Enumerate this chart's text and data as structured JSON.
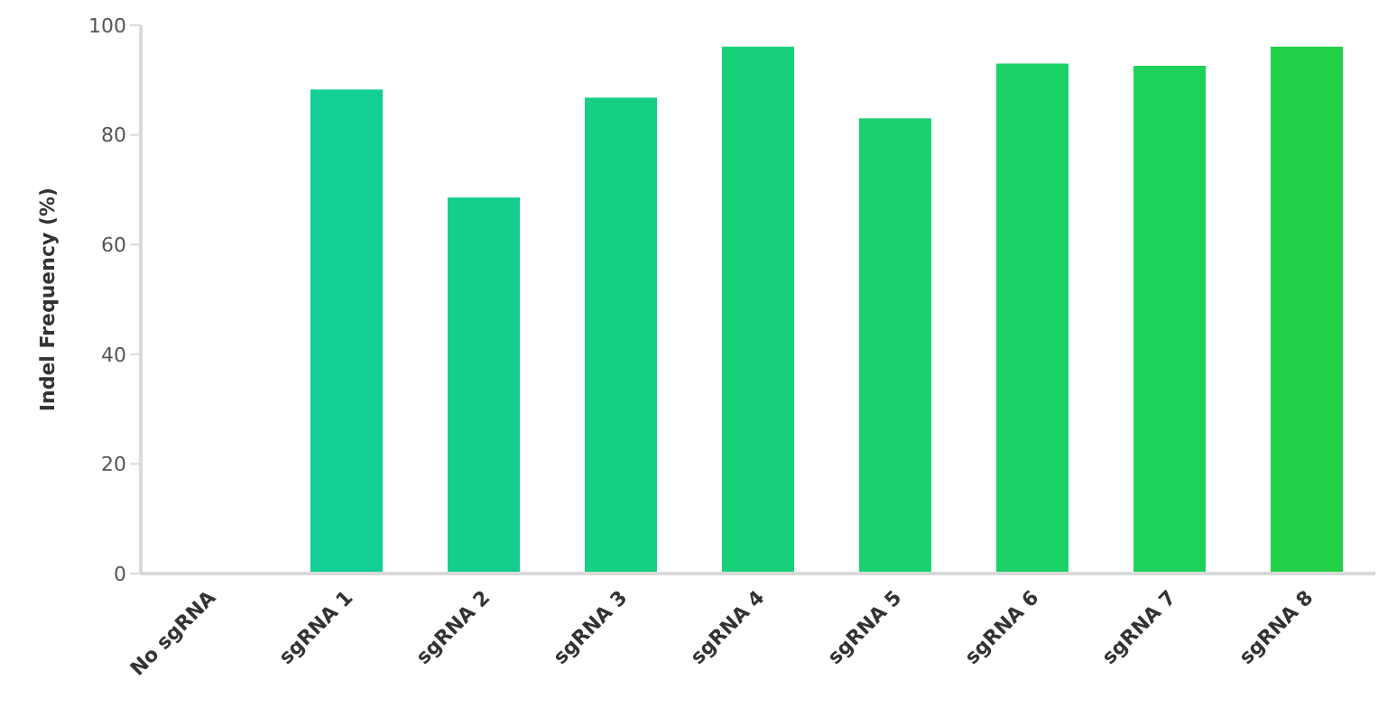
{
  "chart_data": {
    "type": "bar",
    "ylabel": "Indel Frequency (%)",
    "categories": [
      "No sgRNA",
      "sgRNA 1",
      "sgRNA 2",
      "sgRNA 3",
      "sgRNA 4",
      "sgRNA 5",
      "sgRNA 6",
      "sgRNA 7",
      "sgRNA 8"
    ],
    "values": [
      0,
      88.3,
      68.6,
      86.8,
      96.1,
      83.0,
      93.0,
      92.6,
      96.1
    ],
    "colors": [
      "#10cf9c",
      "#12cf96",
      "#14cf8c",
      "#15d083",
      "#17d17a",
      "#19d171",
      "#1bd168",
      "#1dd15b",
      "#22d147"
    ],
    "ylim": [
      0,
      100
    ],
    "yticks": [
      0,
      20,
      40,
      60,
      80,
      100
    ],
    "grid": false,
    "legend": false
  }
}
